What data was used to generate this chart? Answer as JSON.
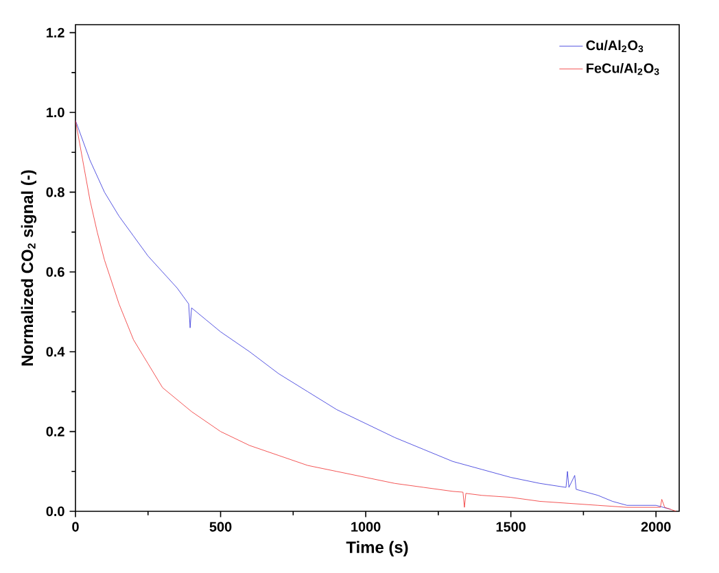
{
  "chart_data": {
    "type": "line",
    "xlabel": "Time (s)",
    "ylabel": "Normalized CO$_{2}$ signal (-)",
    "xlim": [
      0,
      2080
    ],
    "ylim": [
      0,
      1.22
    ],
    "xticks": [
      0,
      500,
      1000,
      1500,
      2000
    ],
    "yticks": [
      {
        "value": 0,
        "label": "0.0"
      },
      0.2,
      0.4,
      0.6,
      0.8,
      {
        "value": 1,
        "label": "1.0"
      },
      1.2
    ],
    "grid": false,
    "legend": "top right",
    "marker": "none",
    "line_style": "solid",
    "series": [
      {
        "name": "Cu/Al$_{2}$O$_{3}$",
        "color": "#2b2bd9",
        "x": [
          0,
          50,
          100,
          150,
          200,
          250,
          300,
          350,
          390,
          395,
          400,
          450,
          500,
          600,
          700,
          800,
          900,
          1000,
          1100,
          1200,
          1300,
          1400,
          1500,
          1600,
          1690,
          1695,
          1700,
          1720,
          1725,
          1800,
          1850,
          1900,
          2000,
          2050
        ],
        "values": [
          0.98,
          0.88,
          0.8,
          0.74,
          0.69,
          0.64,
          0.6,
          0.56,
          0.52,
          0.46,
          0.51,
          0.48,
          0.45,
          0.4,
          0.345,
          0.3,
          0.255,
          0.22,
          0.185,
          0.155,
          0.125,
          0.105,
          0.085,
          0.07,
          0.06,
          0.1,
          0.06,
          0.09,
          0.055,
          0.04,
          0.025,
          0.015,
          0.015,
          0.005
        ]
      },
      {
        "name": "FeCu/Al$_{2}$O$_{3}$",
        "color": "#f02a2a",
        "x": [
          0,
          25,
          50,
          75,
          100,
          150,
          200,
          250,
          300,
          400,
          500,
          600,
          700,
          800,
          900,
          1000,
          1100,
          1200,
          1300,
          1335,
          1340,
          1345,
          1400,
          1500,
          1600,
          1700,
          1800,
          1900,
          2000,
          2015,
          2020,
          2030,
          2070
        ],
        "values": [
          0.98,
          0.88,
          0.78,
          0.7,
          0.63,
          0.52,
          0.43,
          0.37,
          0.31,
          0.25,
          0.2,
          0.165,
          0.14,
          0.115,
          0.1,
          0.085,
          0.07,
          0.06,
          0.05,
          0.048,
          0.01,
          0.045,
          0.04,
          0.035,
          0.025,
          0.02,
          0.015,
          0.01,
          0.01,
          0.01,
          0.03,
          0.01,
          0.0
        ]
      }
    ]
  }
}
